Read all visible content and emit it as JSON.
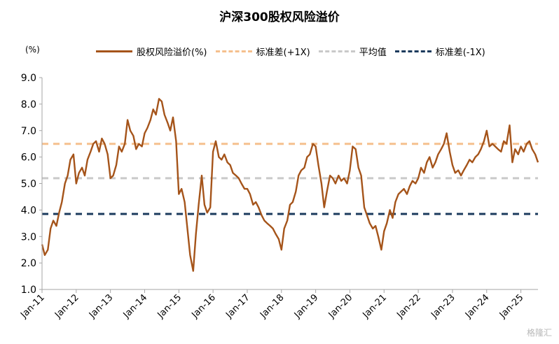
{
  "chart_data": {
    "type": "line",
    "title": "沪深300股权风险溢价",
    "unit_label": "(%)",
    "ylim": [
      1.0,
      9.0
    ],
    "yticks": [
      "1.0",
      "2.0",
      "3.0",
      "4.0",
      "5.0",
      "6.0",
      "7.0",
      "8.0",
      "9.0"
    ],
    "categories": [
      "Jan-11",
      "Jan-12",
      "Jan-13",
      "Jan-14",
      "Jan-15",
      "Jan-16",
      "Jan-17",
      "Jan-18",
      "Jan-19",
      "Jan-20",
      "Jan-21",
      "Jan-22",
      "Jan-23",
      "Jan-24",
      "Jan-25"
    ],
    "x_end": 2025.5,
    "grid": false,
    "legend_position": "top",
    "series": [
      {
        "name": "股权风险溢价(%)",
        "color": "#A5541A",
        "style": "solid",
        "points": [
          [
            2011.0,
            2.7
          ],
          [
            2011.08,
            2.3
          ],
          [
            2011.17,
            2.5
          ],
          [
            2011.25,
            3.3
          ],
          [
            2011.33,
            3.6
          ],
          [
            2011.42,
            3.4
          ],
          [
            2011.5,
            3.9
          ],
          [
            2011.58,
            4.3
          ],
          [
            2011.67,
            5.0
          ],
          [
            2011.75,
            5.3
          ],
          [
            2011.83,
            5.9
          ],
          [
            2011.92,
            6.1
          ],
          [
            2012.0,
            5.0
          ],
          [
            2012.08,
            5.4
          ],
          [
            2012.17,
            5.6
          ],
          [
            2012.25,
            5.3
          ],
          [
            2012.33,
            5.9
          ],
          [
            2012.42,
            6.2
          ],
          [
            2012.5,
            6.5
          ],
          [
            2012.58,
            6.6
          ],
          [
            2012.67,
            6.2
          ],
          [
            2012.75,
            6.7
          ],
          [
            2012.83,
            6.5
          ],
          [
            2012.92,
            6.1
          ],
          [
            2013.0,
            5.2
          ],
          [
            2013.08,
            5.3
          ],
          [
            2013.17,
            5.7
          ],
          [
            2013.25,
            6.4
          ],
          [
            2013.33,
            6.2
          ],
          [
            2013.42,
            6.5
          ],
          [
            2013.5,
            7.4
          ],
          [
            2013.58,
            7.0
          ],
          [
            2013.67,
            6.8
          ],
          [
            2013.75,
            6.3
          ],
          [
            2013.83,
            6.5
          ],
          [
            2013.92,
            6.4
          ],
          [
            2014.0,
            6.9
          ],
          [
            2014.08,
            7.1
          ],
          [
            2014.17,
            7.4
          ],
          [
            2014.25,
            7.8
          ],
          [
            2014.33,
            7.6
          ],
          [
            2014.42,
            8.2
          ],
          [
            2014.5,
            8.1
          ],
          [
            2014.58,
            7.6
          ],
          [
            2014.67,
            7.3
          ],
          [
            2014.75,
            7.0
          ],
          [
            2014.83,
            7.5
          ],
          [
            2014.92,
            6.6
          ],
          [
            2015.0,
            4.6
          ],
          [
            2015.08,
            4.8
          ],
          [
            2015.17,
            4.3
          ],
          [
            2015.25,
            3.3
          ],
          [
            2015.33,
            2.3
          ],
          [
            2015.42,
            1.7
          ],
          [
            2015.5,
            3.1
          ],
          [
            2015.58,
            4.2
          ],
          [
            2015.67,
            5.3
          ],
          [
            2015.75,
            4.2
          ],
          [
            2015.83,
            3.9
          ],
          [
            2015.92,
            4.1
          ],
          [
            2016.0,
            6.2
          ],
          [
            2016.08,
            6.6
          ],
          [
            2016.17,
            6.0
          ],
          [
            2016.25,
            5.9
          ],
          [
            2016.33,
            6.1
          ],
          [
            2016.42,
            5.8
          ],
          [
            2016.5,
            5.7
          ],
          [
            2016.58,
            5.4
          ],
          [
            2016.67,
            5.3
          ],
          [
            2016.75,
            5.2
          ],
          [
            2016.83,
            5.0
          ],
          [
            2016.92,
            4.8
          ],
          [
            2017.0,
            4.8
          ],
          [
            2017.08,
            4.6
          ],
          [
            2017.17,
            4.2
          ],
          [
            2017.25,
            4.3
          ],
          [
            2017.33,
            4.1
          ],
          [
            2017.42,
            3.8
          ],
          [
            2017.5,
            3.6
          ],
          [
            2017.58,
            3.5
          ],
          [
            2017.67,
            3.4
          ],
          [
            2017.75,
            3.3
          ],
          [
            2017.83,
            3.1
          ],
          [
            2017.92,
            2.9
          ],
          [
            2018.0,
            2.5
          ],
          [
            2018.08,
            3.3
          ],
          [
            2018.17,
            3.6
          ],
          [
            2018.25,
            4.2
          ],
          [
            2018.33,
            4.3
          ],
          [
            2018.42,
            4.7
          ],
          [
            2018.5,
            5.3
          ],
          [
            2018.58,
            5.5
          ],
          [
            2018.67,
            5.6
          ],
          [
            2018.75,
            6.0
          ],
          [
            2018.83,
            6.1
          ],
          [
            2018.92,
            6.5
          ],
          [
            2019.0,
            6.4
          ],
          [
            2019.08,
            5.7
          ],
          [
            2019.17,
            5.0
          ],
          [
            2019.25,
            4.1
          ],
          [
            2019.33,
            4.7
          ],
          [
            2019.42,
            5.3
          ],
          [
            2019.5,
            5.2
          ],
          [
            2019.58,
            5.0
          ],
          [
            2019.67,
            5.3
          ],
          [
            2019.75,
            5.1
          ],
          [
            2019.83,
            5.2
          ],
          [
            2019.92,
            5.0
          ],
          [
            2020.0,
            5.5
          ],
          [
            2020.08,
            6.4
          ],
          [
            2020.17,
            6.3
          ],
          [
            2020.25,
            5.6
          ],
          [
            2020.33,
            5.3
          ],
          [
            2020.42,
            4.1
          ],
          [
            2020.5,
            3.8
          ],
          [
            2020.58,
            3.5
          ],
          [
            2020.67,
            3.3
          ],
          [
            2020.75,
            3.4
          ],
          [
            2020.83,
            3.0
          ],
          [
            2020.92,
            2.5
          ],
          [
            2021.0,
            3.2
          ],
          [
            2021.08,
            3.5
          ],
          [
            2021.17,
            4.0
          ],
          [
            2021.25,
            3.7
          ],
          [
            2021.33,
            4.3
          ],
          [
            2021.42,
            4.6
          ],
          [
            2021.5,
            4.7
          ],
          [
            2021.58,
            4.8
          ],
          [
            2021.67,
            4.6
          ],
          [
            2021.75,
            4.9
          ],
          [
            2021.83,
            5.1
          ],
          [
            2021.92,
            5.0
          ],
          [
            2022.0,
            5.2
          ],
          [
            2022.08,
            5.6
          ],
          [
            2022.17,
            5.4
          ],
          [
            2022.25,
            5.8
          ],
          [
            2022.33,
            6.0
          ],
          [
            2022.42,
            5.6
          ],
          [
            2022.5,
            5.8
          ],
          [
            2022.58,
            6.1
          ],
          [
            2022.67,
            6.3
          ],
          [
            2022.75,
            6.5
          ],
          [
            2022.83,
            6.9
          ],
          [
            2022.92,
            6.2
          ],
          [
            2023.0,
            5.7
          ],
          [
            2023.08,
            5.4
          ],
          [
            2023.17,
            5.5
          ],
          [
            2023.25,
            5.3
          ],
          [
            2023.33,
            5.5
          ],
          [
            2023.42,
            5.7
          ],
          [
            2023.5,
            5.9
          ],
          [
            2023.58,
            5.8
          ],
          [
            2023.67,
            6.0
          ],
          [
            2023.75,
            6.1
          ],
          [
            2023.83,
            6.3
          ],
          [
            2023.92,
            6.6
          ],
          [
            2024.0,
            7.0
          ],
          [
            2024.08,
            6.4
          ],
          [
            2024.17,
            6.5
          ],
          [
            2024.25,
            6.4
          ],
          [
            2024.33,
            6.3
          ],
          [
            2024.42,
            6.2
          ],
          [
            2024.5,
            6.6
          ],
          [
            2024.58,
            6.5
          ],
          [
            2024.67,
            7.2
          ],
          [
            2024.75,
            5.8
          ],
          [
            2024.83,
            6.3
          ],
          [
            2024.92,
            6.1
          ],
          [
            2025.0,
            6.4
          ],
          [
            2025.08,
            6.2
          ],
          [
            2025.17,
            6.5
          ],
          [
            2025.25,
            6.6
          ],
          [
            2025.33,
            6.3
          ],
          [
            2025.42,
            6.1
          ],
          [
            2025.5,
            5.8
          ]
        ]
      },
      {
        "name": "标准差(+1X)",
        "color": "#F5C08E",
        "style": "dashed",
        "constant": 6.5
      },
      {
        "name": "平均值",
        "color": "#C9C9C9",
        "style": "dashed",
        "constant": 5.2
      },
      {
        "name": "标准差(-1X)",
        "color": "#1B3A5C",
        "style": "dashed",
        "constant": 3.85
      }
    ]
  },
  "watermark": "格隆汇"
}
